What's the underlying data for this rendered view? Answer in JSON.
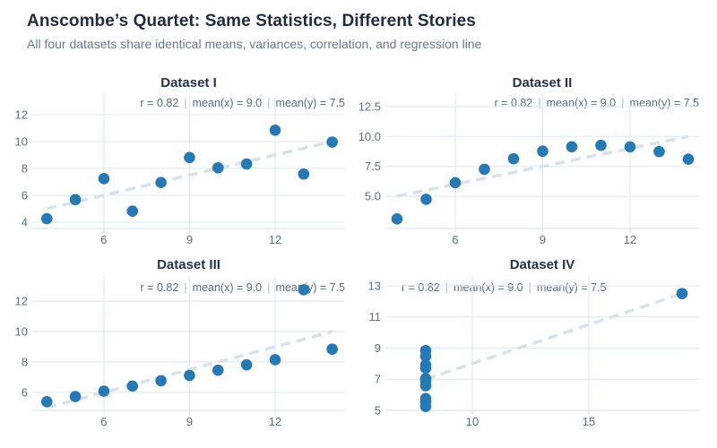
{
  "header": {
    "title": "Anscombe’s Quartet: Same Statistics, Different Stories",
    "subtitle": "All four datasets share identical means, variances, correlation, and regression line"
  },
  "stats_separator": "|",
  "style": {
    "dot_color": "#2879b2",
    "grid_color": "#e3eaf2",
    "axis_line_color": "#dde5ee",
    "trend_line_color": "#d9e1eb",
    "tick_label_color": "#5e7080"
  },
  "chart_data": [
    {
      "type": "scatter",
      "title": "Dataset I",
      "stats": {
        "r": "r = 0.82",
        "mean_x": "mean(x) = 9.0",
        "mean_y": "mean(y) = 7.5"
      },
      "x": [
        10,
        8,
        13,
        9,
        11,
        14,
        6,
        4,
        12,
        7,
        5
      ],
      "y": [
        8.04,
        6.95,
        7.58,
        8.81,
        8.33,
        9.96,
        7.24,
        4.26,
        10.84,
        4.82,
        5.68
      ],
      "regression": {
        "slope": 0.5,
        "intercept": 3.0
      },
      "xlim": [
        3.49,
        14.45
      ],
      "ylim": [
        3.53,
        13.53
      ],
      "xticks": [
        6,
        9,
        12
      ],
      "xtick_labels": [
        "6",
        "9",
        "12"
      ],
      "yticks": [
        4,
        6,
        8,
        10,
        12
      ],
      "ytick_labels": [
        "4",
        "6",
        "8",
        "10",
        "12"
      ],
      "annotation_align": "right",
      "grid": true,
      "legend": false
    },
    {
      "type": "scatter",
      "title": "Dataset II",
      "stats": {
        "r": "r = 0.82",
        "mean_x": "mean(x) = 9.0",
        "mean_y": "mean(y) = 7.5"
      },
      "x": [
        10,
        8,
        13,
        9,
        11,
        14,
        6,
        4,
        12,
        7,
        5
      ],
      "y": [
        9.14,
        8.14,
        8.74,
        8.77,
        9.26,
        8.1,
        6.13,
        3.1,
        9.13,
        7.26,
        4.74
      ],
      "regression": {
        "slope": 0.5,
        "intercept": 3.0
      },
      "xlim": [
        3.6,
        14.37
      ],
      "ylim": [
        2.3,
        13.55
      ],
      "xticks": [
        6,
        9,
        12
      ],
      "xtick_labels": [
        "6",
        "9",
        "12"
      ],
      "yticks": [
        5.0,
        7.5,
        10.0,
        12.5
      ],
      "ytick_labels": [
        "5.0",
        "7.5",
        "10.0",
        "12.5"
      ],
      "annotation_align": "right",
      "grid": true,
      "legend": false
    },
    {
      "type": "scatter",
      "title": "Dataset III",
      "stats": {
        "r": "r = 0.82",
        "mean_x": "mean(x) = 9.0",
        "mean_y": "mean(y) = 7.5"
      },
      "x": [
        10,
        8,
        13,
        9,
        11,
        14,
        6,
        4,
        12,
        7,
        5
      ],
      "y": [
        7.46,
        6.77,
        12.74,
        7.11,
        7.81,
        8.84,
        6.08,
        5.39,
        8.15,
        6.42,
        5.73
      ],
      "regression": {
        "slope": 0.5,
        "intercept": 3.0
      },
      "xlim": [
        3.49,
        14.45
      ],
      "ylim": [
        4.82,
        13.65
      ],
      "xticks": [
        6,
        9,
        12
      ],
      "xtick_labels": [
        "6",
        "9",
        "12"
      ],
      "yticks": [
        6,
        8,
        10,
        12
      ],
      "ytick_labels": [
        "6",
        "8",
        "10",
        "12"
      ],
      "annotation_align": "right",
      "grid": true,
      "legend": false
    },
    {
      "type": "scatter",
      "title": "Dataset IV",
      "stats": {
        "r": "r = 0.82",
        "mean_x": "mean(x) = 9.0",
        "mean_y": "mean(y) = 7.5"
      },
      "x": [
        8,
        8,
        8,
        8,
        8,
        8,
        8,
        19,
        8,
        8,
        8
      ],
      "y": [
        6.58,
        5.76,
        7.71,
        8.84,
        8.47,
        7.04,
        5.25,
        12.5,
        5.56,
        7.91,
        6.89
      ],
      "regression": {
        "slope": 0.5,
        "intercept": 3.0
      },
      "xlim": [
        6.27,
        19.73
      ],
      "ylim": [
        5.0,
        13.63
      ],
      "xticks": [
        10,
        15
      ],
      "xtick_labels": [
        "10",
        "15"
      ],
      "yticks": [
        5,
        7,
        9,
        11,
        13
      ],
      "ytick_labels": [
        "5",
        "7",
        "9",
        "11",
        "13"
      ],
      "annotation_align": "left",
      "grid": true,
      "legend": false
    }
  ]
}
